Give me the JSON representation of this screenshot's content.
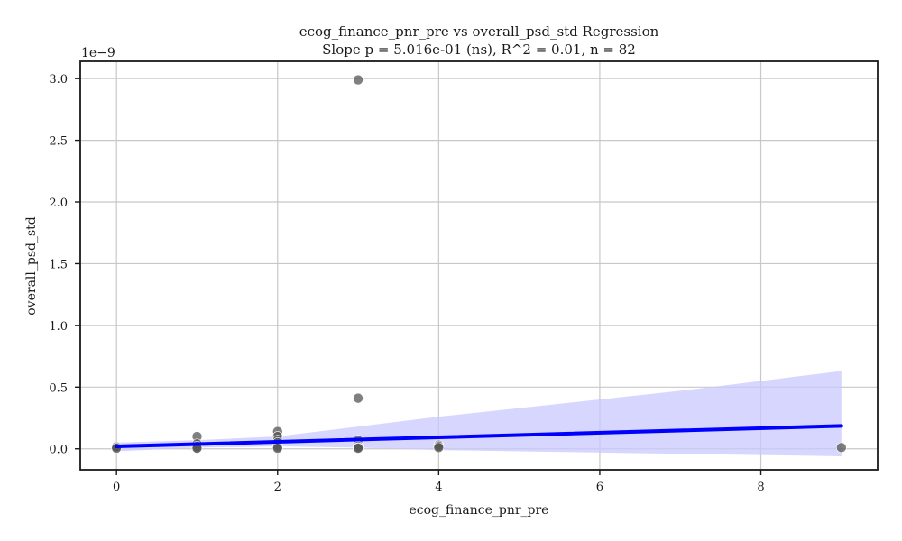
{
  "chart_data": {
    "type": "scatter",
    "title": "ecog_finance_pnr_pre vs overall_psd_std Regression",
    "subtitle": "Slope p = 5.016e-01 (ns), R^2 = 0.01, n = 82",
    "xlabel": "ecog_finance_pnr_pre",
    "ylabel": "overall_psd_std",
    "y_offset_label": "1e−9",
    "xlim": [
      -0.45,
      9.45
    ],
    "ylim": [
      -0.17,
      3.14
    ],
    "x_ticks": [
      0,
      2,
      4,
      6,
      8
    ],
    "x_tick_labels": [
      "0",
      "2",
      "4",
      "6",
      "8"
    ],
    "y_ticks": [
      0.0,
      0.5,
      1.0,
      1.5,
      2.0,
      2.5,
      3.0
    ],
    "y_tick_labels": [
      "0.0",
      "0.5",
      "1.0",
      "1.5",
      "2.0",
      "2.5",
      "3.0"
    ],
    "grid": true,
    "points": [
      {
        "x": 0,
        "y": 0.01
      },
      {
        "x": 0,
        "y": 0.015
      },
      {
        "x": 0,
        "y": 0.005
      },
      {
        "x": 1,
        "y": 0.1
      },
      {
        "x": 1,
        "y": 0.04
      },
      {
        "x": 1,
        "y": 0.02
      },
      {
        "x": 1,
        "y": 0.01
      },
      {
        "x": 1,
        "y": 0.005
      },
      {
        "x": 2,
        "y": 0.14
      },
      {
        "x": 2,
        "y": 0.1
      },
      {
        "x": 2,
        "y": 0.07
      },
      {
        "x": 2,
        "y": 0.05
      },
      {
        "x": 2,
        "y": 0.03
      },
      {
        "x": 2,
        "y": 0.015
      },
      {
        "x": 2,
        "y": 0.005
      },
      {
        "x": 3,
        "y": 2.99
      },
      {
        "x": 3,
        "y": 0.41
      },
      {
        "x": 3,
        "y": 0.07
      },
      {
        "x": 3,
        "y": 0.02
      },
      {
        "x": 3,
        "y": 0.01
      },
      {
        "x": 3,
        "y": 0.005
      },
      {
        "x": 4,
        "y": 0.03
      },
      {
        "x": 4,
        "y": 0.02
      },
      {
        "x": 4,
        "y": 0.01
      },
      {
        "x": 9,
        "y": 0.01
      }
    ],
    "regression": {
      "x_start": 0,
      "y_start": 0.02,
      "x_end": 9,
      "y_end": 0.185,
      "ci_upper": [
        [
          0,
          0.05
        ],
        [
          1,
          0.07
        ],
        [
          2,
          0.1
        ],
        [
          3,
          0.18
        ],
        [
          4,
          0.26
        ],
        [
          5,
          0.33
        ],
        [
          6,
          0.4
        ],
        [
          7,
          0.47
        ],
        [
          8,
          0.55
        ],
        [
          9,
          0.63
        ]
      ],
      "ci_lower": [
        [
          0,
          -0.02
        ],
        [
          1,
          0.01
        ],
        [
          2,
          0.02
        ],
        [
          3,
          0.01
        ],
        [
          4,
          -0.01
        ],
        [
          5,
          -0.02
        ],
        [
          6,
          -0.03
        ],
        [
          7,
          -0.04
        ],
        [
          8,
          -0.05
        ],
        [
          9,
          -0.06
        ]
      ]
    },
    "colors": {
      "points": "#555555",
      "line": "#0000ff",
      "band": "#c8c8ff",
      "grid": "#c8c8c8",
      "axis": "#1a1a1a"
    }
  }
}
